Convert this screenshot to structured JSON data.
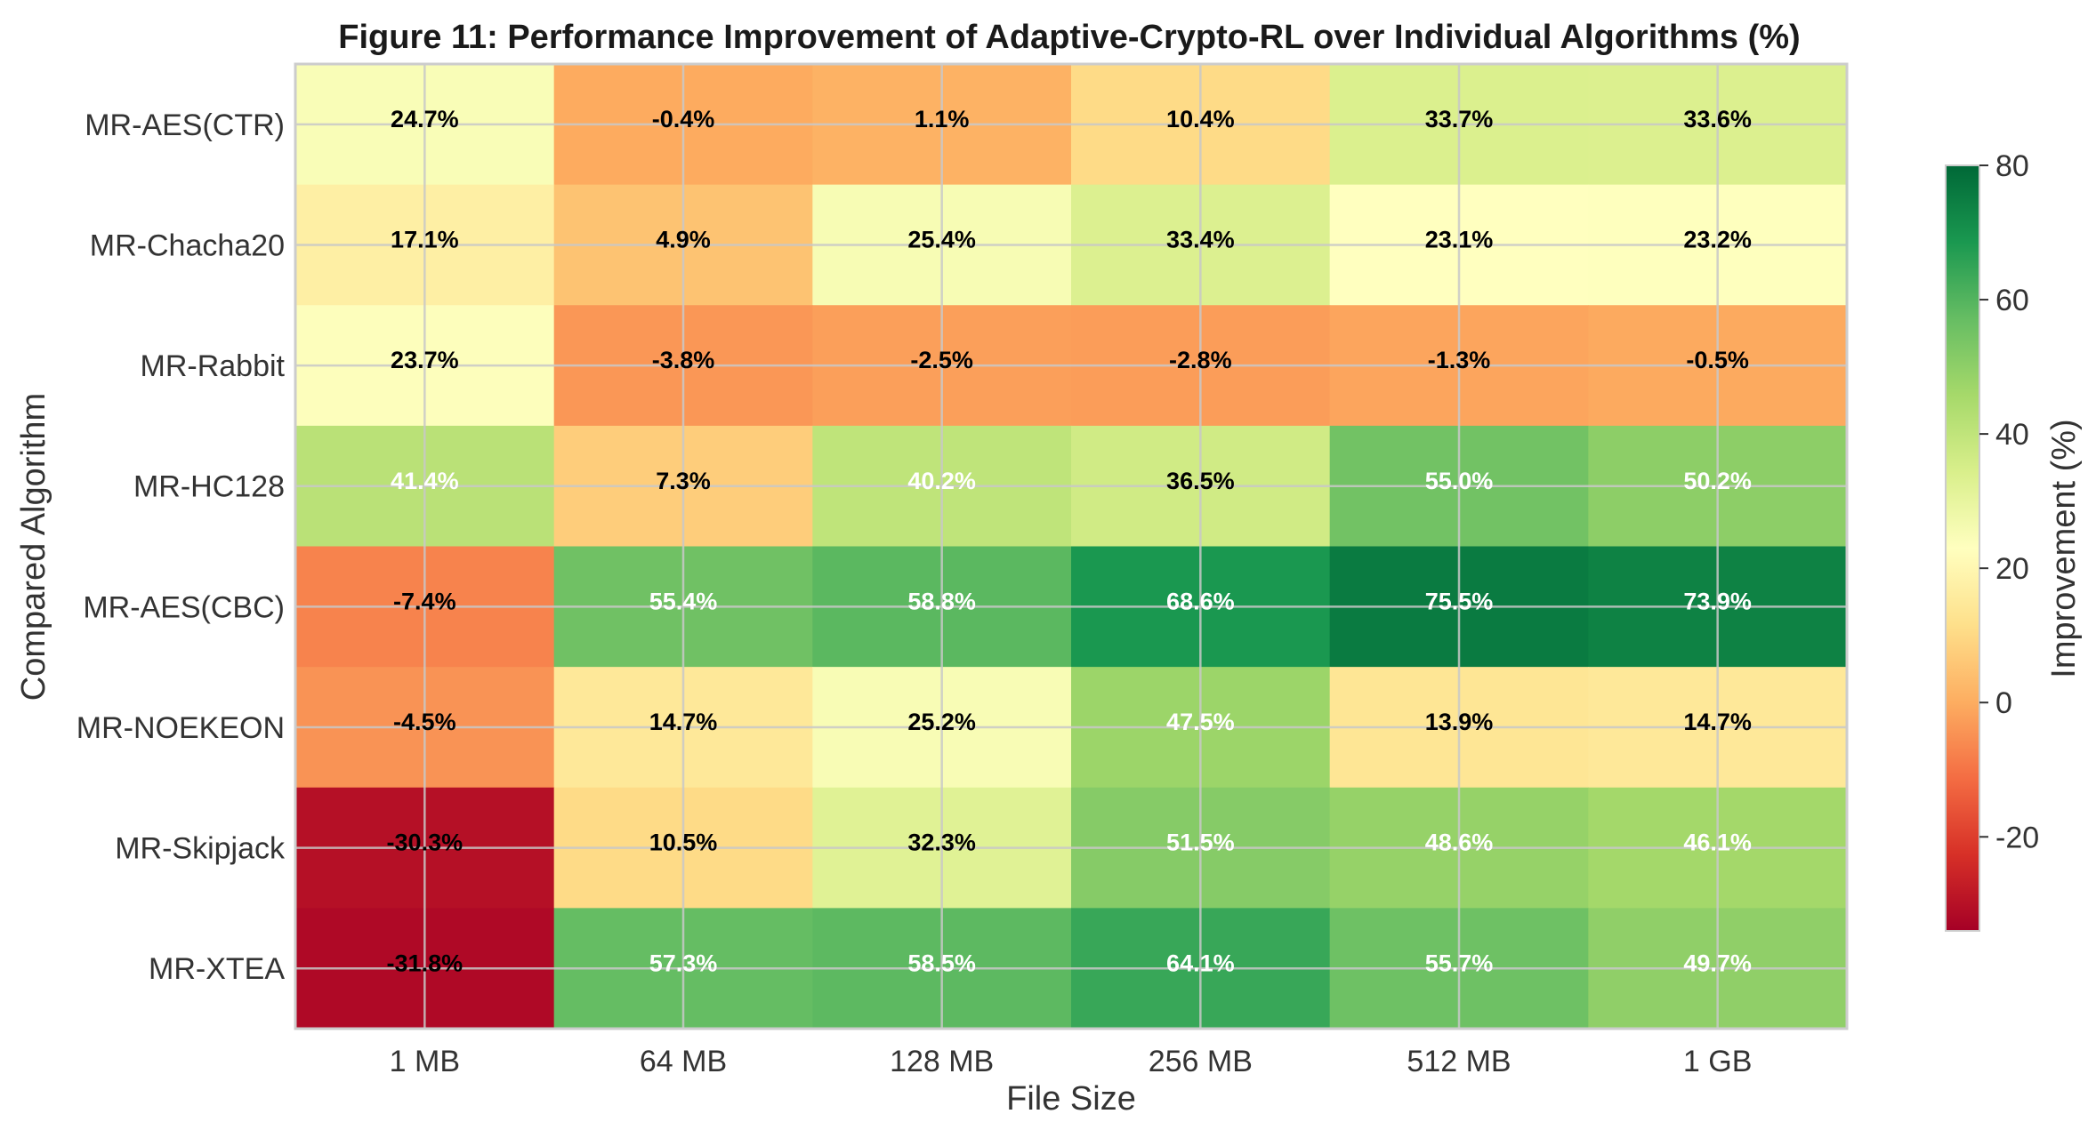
{
  "chart_data": {
    "type": "heatmap",
    "title": "Figure 11: Performance Improvement of Adaptive-Crypto-RL over Individual Algorithms (%)",
    "xlabel": "File Size",
    "ylabel": "Compared Algorithm",
    "x_categories": [
      "1 MB",
      "64 MB",
      "128 MB",
      "256 MB",
      "512 MB",
      "1 GB"
    ],
    "y_categories": [
      "MR-AES(CTR)",
      "MR-Chacha20",
      "MR-Rabbit",
      "MR-HC128",
      "MR-AES(CBC)",
      "MR-NOEKEON",
      "MR-Skipjack",
      "MR-XTEA"
    ],
    "values": [
      [
        24.7,
        -0.4,
        1.1,
        10.4,
        33.7,
        33.6
      ],
      [
        17.1,
        4.9,
        25.4,
        33.4,
        23.1,
        23.2
      ],
      [
        23.7,
        -3.8,
        -2.5,
        -2.8,
        -1.3,
        -0.5
      ],
      [
        41.4,
        7.3,
        40.2,
        36.5,
        55.0,
        50.2
      ],
      [
        -7.4,
        55.4,
        58.8,
        68.6,
        75.5,
        73.9
      ],
      [
        -4.5,
        14.7,
        25.2,
        47.5,
        13.9,
        14.7
      ],
      [
        -30.3,
        10.5,
        32.3,
        51.5,
        48.6,
        46.1
      ],
      [
        -31.8,
        57.3,
        58.5,
        64.1,
        55.7,
        49.7
      ]
    ],
    "value_suffix": "%",
    "colormap": "RdYlGn",
    "vmin": -34,
    "vmax": 80,
    "grid": true,
    "colorbar": {
      "label": "Improvement (%)",
      "ticks": [
        80,
        60,
        40,
        20,
        0,
        -20
      ],
      "tick_labels": [
        "80",
        "60",
        "40",
        "20",
        "0",
        "-20"
      ]
    }
  }
}
